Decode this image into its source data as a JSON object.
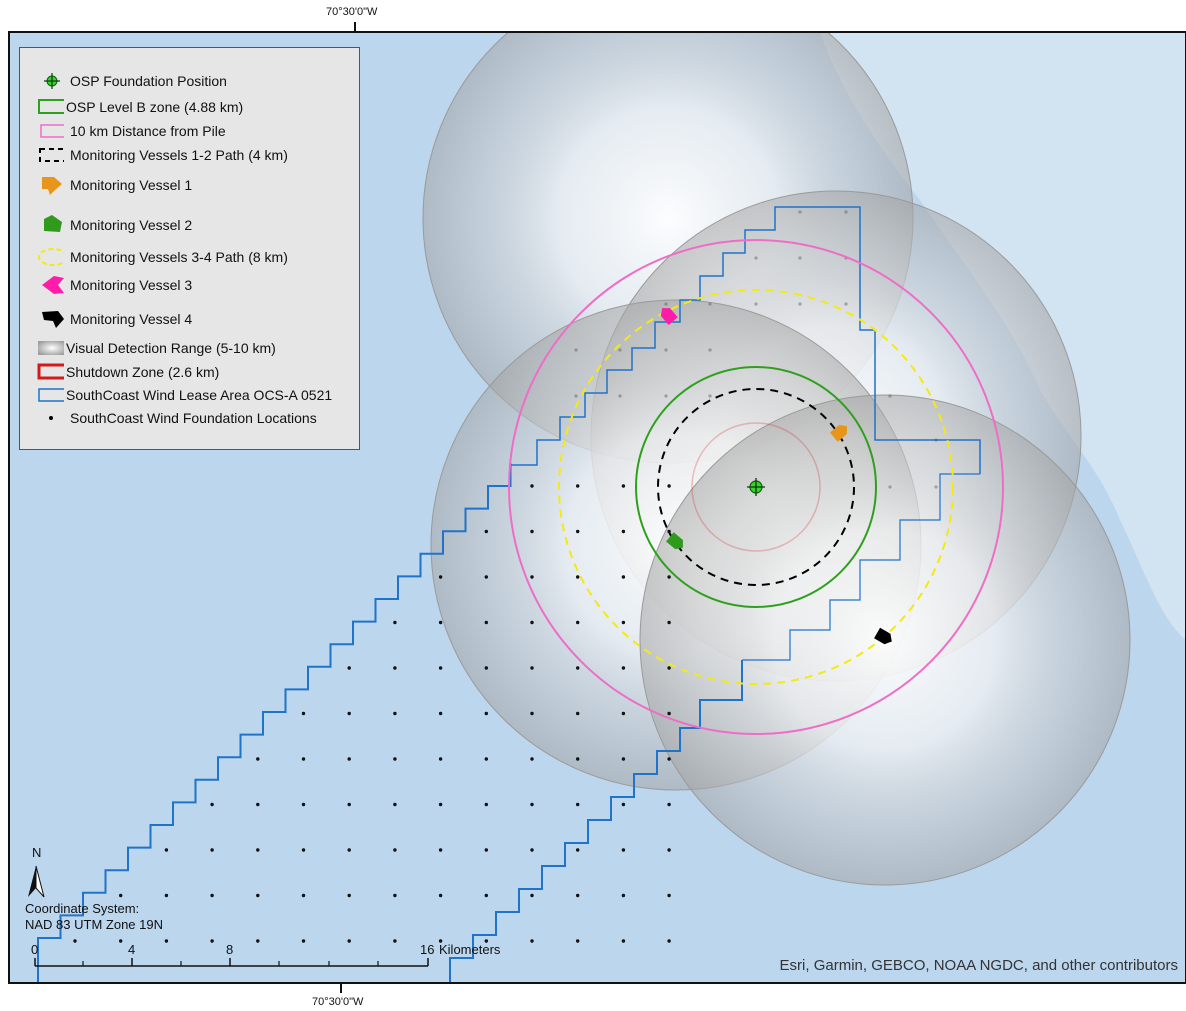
{
  "map": {
    "top_coord_label": "70°30'0\"W",
    "bottom_coord_label": "70°30'0\"W",
    "colors": {
      "water": "#bcd6ee",
      "land": "#d2e3f2",
      "lease_area": "#1f73c9",
      "level_b_zone": "#2ea01e",
      "ten_km": "#ee6dc6",
      "path_1_2": "#000000",
      "path_3_4": "#f3ea14",
      "shutdown": "#d21a1a",
      "vessel_1": "#e8951b",
      "vessel_2": "#2f9a1c",
      "vessel_3": "#ff1ca8",
      "vessel_4": "#000000"
    },
    "coordinate_system": {
      "line1": "Coordinate System:",
      "line2": "NAD 83 UTM Zone 19N"
    },
    "north_label": "N",
    "scale_bar": {
      "labels": [
        "0",
        "4",
        "8",
        "16"
      ],
      "unit": "Kilometers"
    },
    "attribution": "Esri, Garmin, GEBCO, NOAA NGDC, and other contributors"
  },
  "legend": {
    "items": [
      {
        "label": "OSP Foundation Position",
        "icon": "osp-crosshair-icon"
      },
      {
        "label": "OSP Level B zone (4.88 km)",
        "icon": "green-box-icon"
      },
      {
        "label": "10 km Distance from Pile",
        "icon": "pink-box-icon"
      },
      {
        "label": "Monitoring Vessels 1-2 Path (4 km)",
        "icon": "black-dashed-box-icon"
      },
      {
        "label": "Monitoring Vessel 1",
        "icon": "orange-vessel-icon"
      },
      {
        "label": "Monitoring Vessel 2",
        "icon": "green-vessel-icon"
      },
      {
        "label": "Monitoring Vessels 3-4 Path (8 km)",
        "icon": "yellow-dashed-ellipse-icon"
      },
      {
        "label": "Monitoring Vessel 3",
        "icon": "magenta-vessel-icon"
      },
      {
        "label": "Monitoring Vessel 4",
        "icon": "black-vessel-icon"
      },
      {
        "label": "Visual Detection Range (5-10 km)",
        "icon": "gray-gradient-icon"
      },
      {
        "label": "Shutdown Zone (2.6 km)",
        "icon": "red-box-icon"
      },
      {
        "label": "SouthCoast Wind Lease Area OCS-A 0521",
        "icon": "blue-box-icon"
      },
      {
        "label": "SouthCoast Wind Foundation Locations",
        "icon": "dot-icon"
      }
    ]
  }
}
